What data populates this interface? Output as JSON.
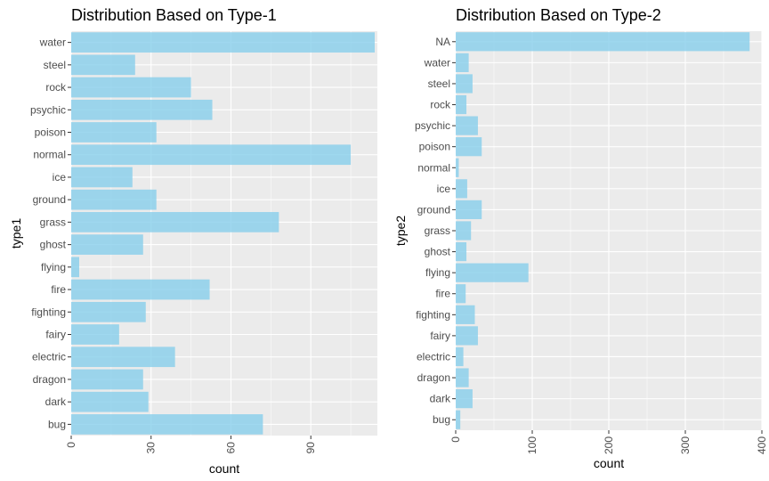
{
  "colors": {
    "panel_bg": "#EBEBEB",
    "grid": "#FFFFFF",
    "bar": "#87CEEB",
    "tick_text": "#4D4D4D",
    "axis_text": "#000000"
  },
  "chart_data": [
    {
      "type": "bar",
      "orientation": "horizontal",
      "title": "Distribution Based on Type-1",
      "xlabel": "count",
      "ylabel": "type1",
      "xlim": [
        0,
        115
      ],
      "xticks": [
        "0",
        "30",
        "60",
        "90"
      ],
      "xtick_values": [
        0,
        30,
        60,
        90
      ],
      "grid": true,
      "categories": [
        "water",
        "steel",
        "rock",
        "psychic",
        "poison",
        "normal",
        "ice",
        "ground",
        "grass",
        "ghost",
        "flying",
        "fire",
        "fighting",
        "fairy",
        "electric",
        "dragon",
        "dark",
        "bug"
      ],
      "values": [
        114,
        24,
        45,
        53,
        32,
        105,
        23,
        32,
        78,
        27,
        3,
        52,
        28,
        18,
        39,
        27,
        29,
        72
      ]
    },
    {
      "type": "bar",
      "orientation": "horizontal",
      "title": "Distribution Based on Type-2",
      "xlabel": "count",
      "ylabel": "type2",
      "xlim": [
        0,
        400
      ],
      "xticks": [
        "0",
        "100",
        "200",
        "300",
        "400"
      ],
      "xtick_values": [
        0,
        100,
        200,
        300,
        400
      ],
      "grid": true,
      "categories": [
        "NA",
        "water",
        "steel",
        "rock",
        "psychic",
        "poison",
        "normal",
        "ice",
        "ground",
        "grass",
        "ghost",
        "flying",
        "fire",
        "fighting",
        "fairy",
        "electric",
        "dragon",
        "dark",
        "bug"
      ],
      "values": [
        384,
        17,
        22,
        14,
        29,
        34,
        4,
        15,
        34,
        20,
        14,
        95,
        13,
        25,
        29,
        10,
        17,
        22,
        6
      ]
    }
  ]
}
